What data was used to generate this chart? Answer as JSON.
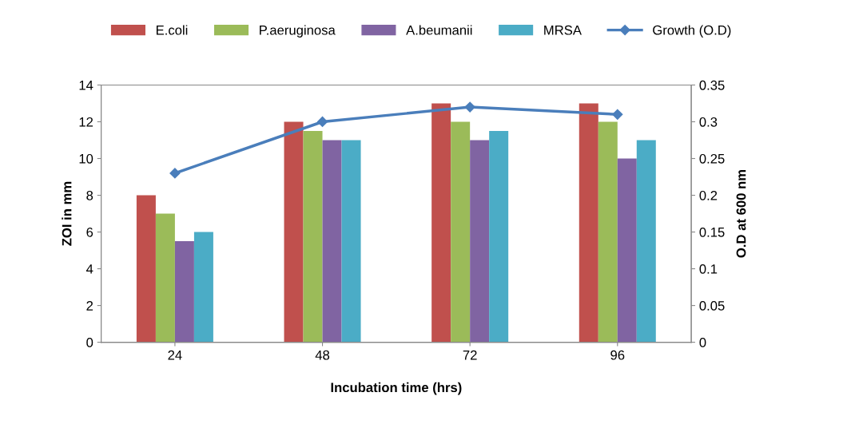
{
  "chart_data": {
    "type": "bar",
    "xlabel": "Incubation time (hrs)",
    "ylabel": "ZOI in mm",
    "y2label": "O.D at 600 nm",
    "categories": [
      "24",
      "48",
      "72",
      "96"
    ],
    "series": [
      {
        "name": "E.coli",
        "color": "#c0504d",
        "values": [
          8,
          12,
          13,
          13
        ]
      },
      {
        "name": "P.aeruginosa",
        "color": "#9bbb59",
        "values": [
          7,
          11.5,
          12,
          12
        ]
      },
      {
        "name": "A.beumanii",
        "color": "#8064a2",
        "values": [
          5.5,
          11,
          11,
          10
        ]
      },
      {
        "name": "MRSA",
        "color": "#4bacc6",
        "values": [
          6,
          11,
          11.5,
          11
        ]
      },
      {
        "name": "Growth (O.D)",
        "color": "#4a7ebb",
        "type": "line",
        "axis": "y2",
        "marker": "diamond",
        "values": [
          0.23,
          0.3,
          0.32,
          0.31
        ]
      }
    ],
    "ylim": [
      0,
      14
    ],
    "yticks": [
      0,
      2,
      4,
      6,
      8,
      10,
      12,
      14
    ],
    "y2lim": [
      0,
      0.35
    ],
    "y2ticks": [
      0,
      {
        "value": 0.05,
        "label": "0.05"
      },
      {
        "value": 0.1,
        "label": "0.1"
      },
      {
        "value": 0.15,
        "label": "0.15"
      },
      {
        "value": 0.2,
        "label": "0.2"
      },
      {
        "value": 0.25,
        "label": "0.25"
      },
      {
        "value": 0.3,
        "label": "0.3"
      },
      {
        "value": 0.35,
        "label": "0.35"
      }
    ],
    "grid": false,
    "legend": "top"
  }
}
